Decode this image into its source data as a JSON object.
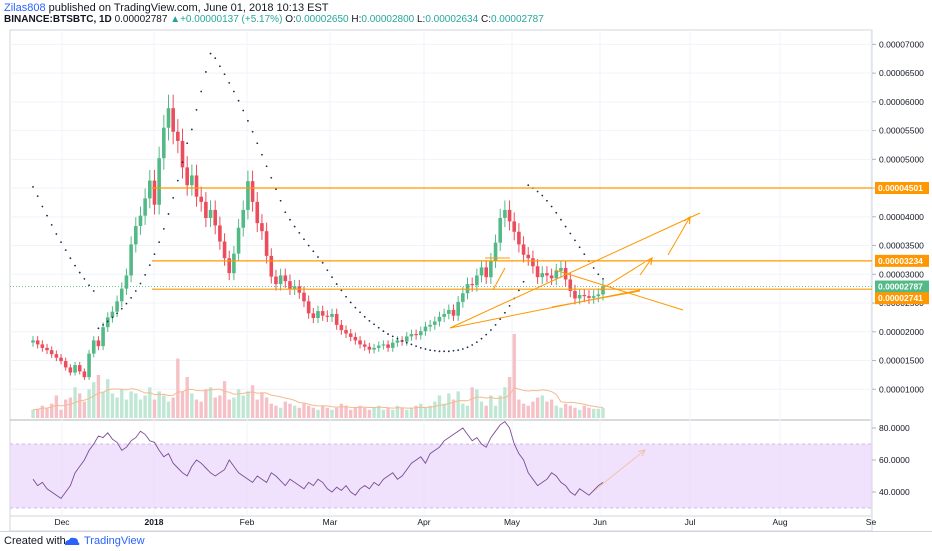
{
  "header": {
    "user": "Zilas808",
    "published": "published on TradingView.com, June 01, 2018 10:13 EST",
    "symbol": "BINANCE:BTSBTC, 1D",
    "last": "0.00002787",
    "change": "+0.00000137 (+5.17%)",
    "o_label": "O:",
    "o_value": "0.00002650",
    "h_label": "H:",
    "h_value": "0.00002800",
    "l_label": "L:",
    "l_value": "0.00002634",
    "c_label": "C:",
    "c_value": "0.00002787"
  },
  "footer": {
    "created_with": "Created with",
    "brand": "TradingView"
  },
  "colors": {
    "up": "#53b987",
    "down": "#eb4d5c",
    "level": "#ff9800",
    "rsi_band": "#e9d5fb",
    "rsi_line": "#7b4e96",
    "sar": "#1b2a4a"
  },
  "chart_data": [
    {
      "type": "candlestick",
      "price_axis_ticks": [
        "0.00007000",
        "0.00006500",
        "0.00006000",
        "0.00005500",
        "0.00005000",
        "0.00004500",
        "0.00004000",
        "0.00003500",
        "0.00003000",
        "0.00002500",
        "0.00002000",
        "0.00001500",
        "0.00001000"
      ],
      "x_axis_ticks": [
        "Dec",
        "2018",
        "Feb",
        "Mar",
        "Apr",
        "May",
        "Jun",
        "Jul",
        "Aug",
        "Se"
      ],
      "ylim": [
        5e-06,
        7.25e-05
      ],
      "price_labels": [
        {
          "text": "0.00004501",
          "value": 4.501e-05,
          "color": "#ff9800"
        },
        {
          "text": "0.00003234",
          "value": 3.234e-05,
          "color": "#ff9800"
        },
        {
          "text": "0.00002787",
          "value": 2.787e-05,
          "color": "#53b987"
        },
        {
          "text": "0.00002741",
          "value": 2.741e-05,
          "color": "#ff9800"
        }
      ],
      "horizontal_levels": [
        4.501e-05,
        3.234e-05,
        2.741e-05
      ],
      "closes": [
        1.85e-05,
        1.78e-05,
        1.72e-05,
        1.68e-05,
        1.61e-05,
        1.55e-05,
        1.49e-05,
        1.38e-05,
        1.29e-05,
        1.42e-05,
        1.31e-05,
        1.21e-05,
        1.62e-05,
        1.85e-05,
        1.75e-05,
        2.08e-05,
        2.25e-05,
        2.35e-05,
        2.53e-05,
        2.75e-05,
        2.98e-05,
        3.52e-05,
        3.84e-05,
        4.02e-05,
        4.32e-05,
        4.63e-05,
        4.21e-05,
        5.02e-05,
        5.55e-05,
        5.89e-05,
        5.48e-05,
        5.32e-05,
        4.86e-05,
        4.55e-05,
        4.72e-05,
        4.35e-05,
        4.26e-05,
        3.98e-05,
        4.12e-05,
        3.85e-05,
        3.57e-05,
        3.28e-05,
        3.02e-05,
        3.36e-05,
        3.81e-05,
        4.12e-05,
        4.62e-05,
        4.26e-05,
        3.89e-05,
        3.75e-05,
        3.32e-05,
        2.96e-05,
        2.83e-05,
        2.98e-05,
        2.88e-05,
        2.75e-05,
        2.79e-05,
        2.68e-05,
        2.53e-05,
        2.32e-05,
        2.24e-05,
        2.36e-05,
        2.28e-05,
        2.26e-05,
        2.31e-05,
        2.12e-05,
        2.03e-05,
        1.97e-05,
        1.91e-05,
        1.85e-05,
        1.78e-05,
        1.74e-05,
        1.69e-05,
        1.72e-05,
        1.76e-05,
        1.78e-05,
        1.72e-05,
        1.81e-05,
        1.85e-05,
        1.83e-05,
        1.92e-05,
        1.96e-05,
        1.94e-05,
        2.01e-05,
        2.09e-05,
        2.12e-05,
        2.18e-05,
        2.26e-05,
        2.31e-05,
        2.38e-05,
        2.28e-05,
        2.52e-05,
        2.67e-05,
        2.83e-05,
        2.81e-05,
        2.98e-05,
        3.12e-05,
        2.95e-05,
        3.24e-05,
        3.55e-05,
        3.98e-05,
        4.12e-05,
        3.92e-05,
        3.74e-05,
        3.52e-05,
        3.34e-05,
        3.28e-05,
        3.14e-05,
        2.95e-05,
        3.02e-05,
        2.98e-05,
        2.93e-05,
        3.06e-05,
        3.11e-05,
        2.91e-05,
        2.71e-05,
        2.58e-05,
        2.64e-05,
        2.62e-05,
        2.59e-05,
        2.62e-05,
        2.65e-05,
        2.79e-05
      ],
      "volumes": [
        8,
        9,
        12,
        10,
        14,
        22,
        8,
        18,
        20,
        30,
        24,
        16,
        28,
        35,
        42,
        26,
        38,
        24,
        20,
        28,
        18,
        26,
        24,
        18,
        22,
        30,
        18,
        26,
        22,
        16,
        20,
        58,
        26,
        40,
        24,
        18,
        16,
        28,
        30,
        20,
        22,
        36,
        18,
        20,
        28,
        22,
        26,
        32,
        18,
        24,
        20,
        14,
        12,
        10,
        16,
        14,
        12,
        10,
        14,
        12,
        10,
        8,
        12,
        10,
        8,
        10,
        14,
        12,
        8,
        10,
        12,
        10,
        8,
        10,
        12,
        8,
        10,
        8,
        12,
        10,
        8,
        10,
        12,
        14,
        10,
        12,
        16,
        22,
        14,
        24,
        18,
        26,
        14,
        12,
        30,
        28,
        16,
        12,
        22,
        12,
        22,
        30,
        40,
        82,
        18,
        14,
        12,
        16,
        20,
        22,
        16,
        18,
        12,
        10,
        14,
        12,
        10,
        8,
        12,
        10,
        9,
        9,
        10
      ],
      "rsi_axis_ticks": [
        "80.0000",
        "60.0000",
        "40.0000"
      ],
      "rsi_ylim": [
        25,
        85
      ],
      "rsi_band": [
        30,
        70
      ],
      "rsi": [
        48,
        44,
        46,
        42,
        40,
        38,
        36,
        40,
        44,
        52,
        56,
        60,
        66,
        70,
        75,
        74,
        77,
        73,
        71,
        66,
        68,
        72,
        74,
        78,
        76,
        72,
        71,
        66,
        62,
        64,
        58,
        55,
        52,
        50,
        56,
        60,
        58,
        55,
        52,
        50,
        52,
        54,
        60,
        56,
        52,
        50,
        48,
        46,
        50,
        48,
        46,
        52,
        50,
        47,
        44,
        48,
        46,
        44,
        42,
        46,
        44,
        48,
        46,
        42,
        40,
        43,
        41,
        44,
        40,
        38,
        42,
        44,
        42,
        46,
        44,
        48,
        50,
        52,
        48,
        50,
        54,
        58,
        60,
        62,
        58,
        64,
        66,
        68,
        72,
        74,
        76,
        78,
        80,
        76,
        72,
        74,
        70,
        68,
        74,
        78,
        82,
        84,
        80,
        70,
        64,
        60,
        52,
        48,
        44,
        46,
        48,
        52,
        50,
        46,
        44,
        40,
        38,
        42,
        40,
        38,
        41,
        44,
        46
      ],
      "sar": [
        4.52e-05,
        4.36e-05,
        4.18e-05,
        4.02e-05,
        3.86e-05,
        3.7e-05,
        3.56e-05,
        3.42e-05,
        3.28e-05,
        3.15e-05,
        3.03e-05,
        2.92e-05,
        2.81e-05,
        2.71e-05,
        2.06e-05,
        2.12e-05,
        2.18e-05,
        2.25e-05,
        2.32e-05,
        2.4e-05,
        2.49e-05,
        2.59e-05,
        2.71e-05,
        2.84e-05,
        2.99e-05,
        3.16e-05,
        3.35e-05,
        3.56e-05,
        3.79e-05,
        4.05e-05,
        4.33e-05,
        4.63e-05,
        4.95e-05,
        5.28e-05,
        5.52e-05,
        5.86e-05,
        6.18e-05,
        6.52e-05,
        6.84e-05,
        6.76e-05,
        6.62e-05,
        6.48e-05,
        6.33e-05,
        6.18e-05,
        6.02e-05,
        5.85e-05,
        5.67e-05,
        5.48e-05,
        5.28e-05,
        5.08e-05,
        4.88e-05,
        4.68e-05,
        4.48e-05,
        4.28e-05,
        4.08e-05,
        3.95e-05,
        3.83e-05,
        3.72e-05,
        3.61e-05,
        3.5e-05,
        3.4e-05,
        3.3e-05,
        3.2e-05,
        3.07e-05,
        2.95e-05,
        2.83e-05,
        2.72e-05,
        2.61e-05,
        2.51e-05,
        2.42e-05,
        2.34e-05,
        2.26e-05,
        2.19e-05,
        2.13e-05,
        2.07e-05,
        2.01e-05,
        1.96e-05,
        1.92e-05,
        1.88e-05,
        1.84e-05,
        1.81e-05,
        1.78e-05,
        1.75e-05,
        1.72e-05,
        1.7e-05,
        1.68e-05,
        1.67e-05,
        1.66e-05,
        1.66e-05,
        1.66e-05,
        1.67e-05,
        1.68e-05,
        1.7e-05,
        1.73e-05,
        1.77e-05,
        1.82e-05,
        1.88e-05,
        1.95e-05,
        2.03e-05,
        2.12e-05,
        2.22e-05,
        2.33e-05,
        2.45e-05,
        2.58e-05,
        2.72e-05,
        2.87e-05,
        4.55e-05,
        4.5e-05,
        4.44e-05,
        4.37e-05,
        4.28e-05,
        4.18e-05,
        4.07e-05,
        3.95e-05,
        3.83e-05,
        3.71e-05,
        3.59e-05,
        3.47e-05,
        3.35e-05,
        3.23e-05,
        3.11e-05,
        3e-05,
        2.92e-05
      ]
    }
  ]
}
